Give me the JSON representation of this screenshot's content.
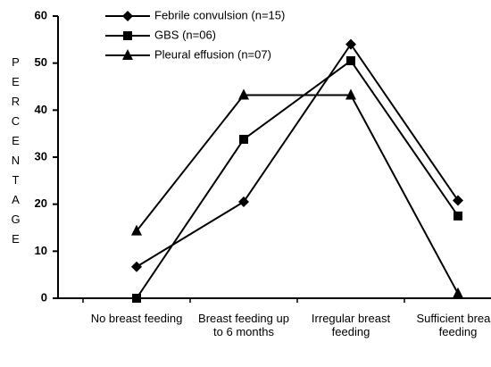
{
  "chart_data": {
    "type": "line",
    "y_label": "PERCENTAGE",
    "categories": [
      "No breast feeding",
      "Breast feeding up to 6 months",
      "Irregular breast feeding",
      "Sufficient breast feeding"
    ],
    "series": [
      {
        "name": "Febrile convulsion (n=15)",
        "color": "#000000",
        "marker": "diamond",
        "values": [
          6.7,
          20.5,
          54,
          20.8
        ]
      },
      {
        "name": "GBS (n=06)",
        "color": "#000000",
        "marker": "square",
        "values": [
          0,
          33.8,
          50.5,
          17.5
        ]
      },
      {
        "name": "Pleural effusion (n=07)",
        "color": "#000000",
        "marker": "triangle",
        "values": [
          14.3,
          43.2,
          43.2,
          1
        ]
      }
    ],
    "ylim": [
      0,
      60
    ],
    "yticks": [
      0,
      10,
      20,
      30,
      40,
      50,
      60
    ],
    "legend": "upper left"
  }
}
